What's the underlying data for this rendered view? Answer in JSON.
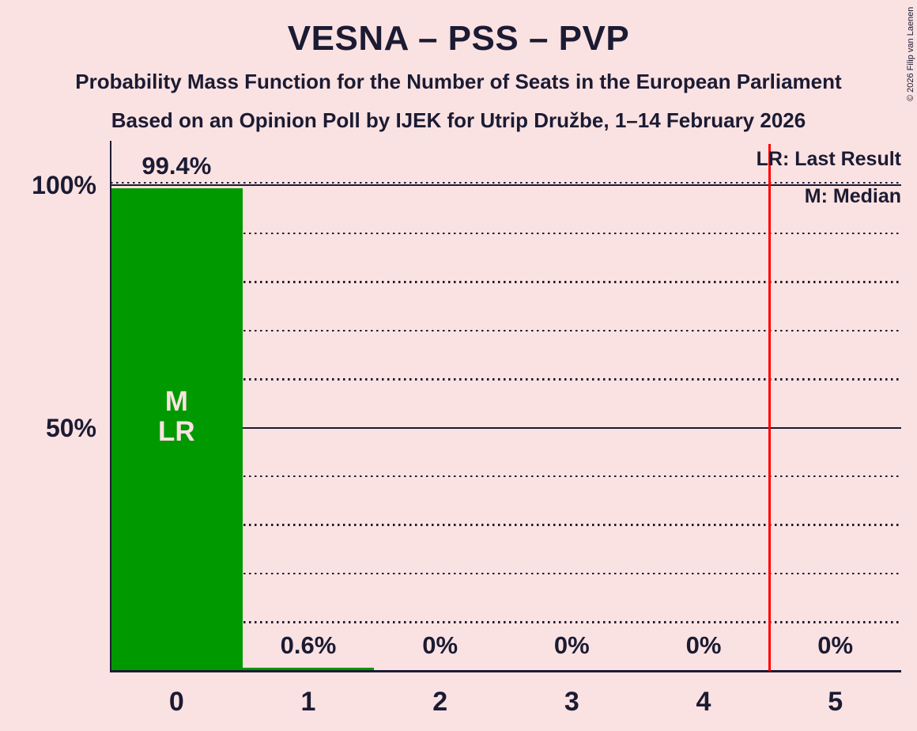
{
  "title": "VESNA – PSS – PVP",
  "subtitle_line1": "Probability Mass Function for the Number of Seats in the European Parliament",
  "subtitle_line2": "Based on an Opinion Poll by IJEK for Utrip Družbe, 1–14 February 2026",
  "copyright": "© 2026 Filip van Laenen",
  "legend": {
    "last_result": "LR: Last Result",
    "median": "M: Median"
  },
  "colors": {
    "background": "#FBE2E2",
    "text": "#1B1B33",
    "bar": "#009900",
    "bar_annotation_text": "#FBE2E2",
    "last_result_line": "#FF0000"
  },
  "chart_data": {
    "type": "bar",
    "title": "VESNA – PSS – PVP",
    "categories": [
      "0",
      "1",
      "2",
      "3",
      "4",
      "5"
    ],
    "values": [
      99.4,
      0.6,
      0,
      0,
      0,
      0
    ],
    "value_labels": [
      "99.4%",
      "0.6%",
      "0%",
      "0%",
      "0%",
      "0%"
    ],
    "xlabel": "",
    "ylabel": "",
    "ylim": [
      0,
      100
    ],
    "y_ticks": [
      {
        "label": "100%",
        "value": 100
      },
      {
        "label": "50%",
        "value": 50
      }
    ],
    "grid": {
      "dotted_every_pct": 10,
      "solid_at_pct": [
        50,
        100
      ],
      "orientation": "horizontal"
    },
    "legend_position": "top-right",
    "bar_annotations": [
      {
        "category": "0",
        "lines": [
          "M",
          "LR"
        ]
      }
    ],
    "last_result_line_at": 4.5
  }
}
